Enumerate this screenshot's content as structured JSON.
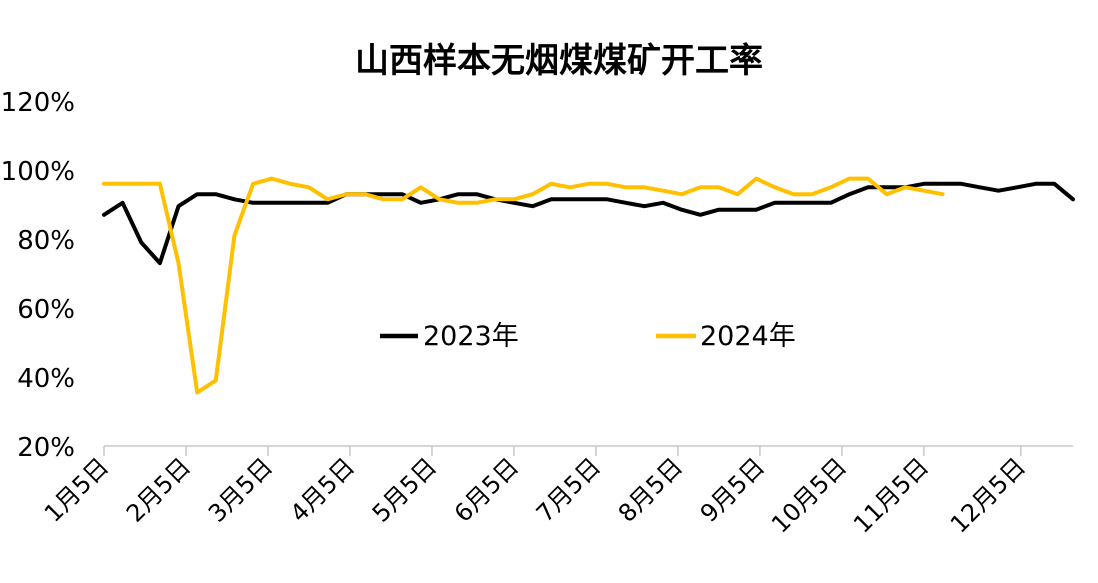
{
  "chart_data": {
    "type": "line",
    "title": "山西样本无烟煤煤矿开工率",
    "xlabel": "",
    "ylabel": "",
    "ylim": [
      20,
      120
    ],
    "y_ticks": [
      "20%",
      "40%",
      "60%",
      "80%",
      "100%",
      "120%"
    ],
    "x_ticks": [
      "1月5日",
      "2月5日",
      "3月5日",
      "4月5日",
      "5月5日",
      "6月5日",
      "7月5日",
      "8月5日",
      "9月5日",
      "10月5日",
      "11月5日",
      "12月5日"
    ],
    "grid": false,
    "legend_position": "center",
    "series": [
      {
        "name": "2023年",
        "color": "#000000",
        "values": [
          87,
          90.5,
          79,
          73,
          89.5,
          93,
          93,
          91.5,
          90.5,
          90.5,
          90.5,
          90.5,
          90.5,
          93,
          93,
          93,
          93,
          90.5,
          91.5,
          93,
          93,
          91.5,
          90.5,
          89.5,
          91.5,
          91.5,
          91.5,
          91.5,
          90.5,
          89.5,
          90.5,
          88.5,
          87,
          88.5,
          88.5,
          88.5,
          90.5,
          90.5,
          90.5,
          90.5,
          93,
          95,
          95,
          95,
          96,
          96,
          96,
          95,
          94,
          95,
          96,
          96,
          91.5
        ]
      },
      {
        "name": "2024年",
        "color": "#FFC000",
        "values": [
          96,
          96,
          96,
          96,
          73,
          35.5,
          39,
          81,
          96,
          97.5,
          96,
          95,
          91.5,
          93,
          93,
          91.5,
          91.5,
          95,
          91.5,
          90.5,
          90.5,
          91.5,
          91.5,
          93,
          96,
          95,
          96,
          96,
          95,
          95,
          94,
          93,
          95,
          95,
          93,
          97.5,
          95,
          93,
          93,
          95,
          97.5,
          97.5,
          93,
          95,
          94,
          93
        ]
      }
    ]
  }
}
